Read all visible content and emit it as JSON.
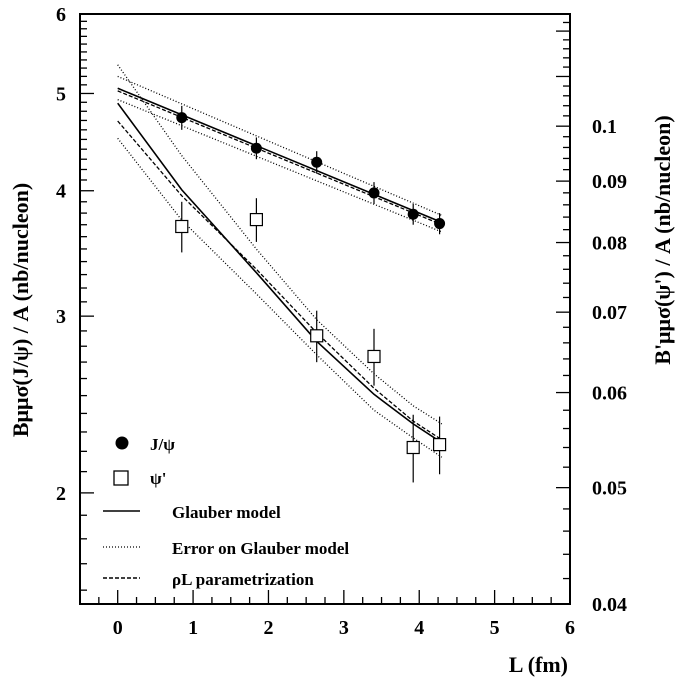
{
  "chart_data": {
    "type": "scatter",
    "x_axis": {
      "label": "L (fm)",
      "range": [
        -0.5,
        6.0
      ],
      "ticks": [
        0,
        1,
        2,
        3,
        4,
        5,
        6
      ]
    },
    "y_left": {
      "label": "Bμμσ(J/ψ) / A (nb/nucleon)",
      "scale": "log",
      "range": [
        1.55,
        6.0
      ],
      "ticks": [
        2,
        3,
        4,
        5,
        6
      ]
    },
    "y_right": {
      "label": "B'μμσ(ψ') / A (nb/nucleon)",
      "scale": "log",
      "range": [
        0.04,
        0.124
      ],
      "ticks": [
        "0.04",
        "0.05",
        "0.06",
        "0.07",
        "0.08",
        "0.09",
        "0.1"
      ]
    },
    "series": [
      {
        "name": "J/ψ",
        "axis": "left",
        "marker": "filled-circle",
        "points": [
          {
            "x": 0.85,
            "y": 4.73,
            "err": 0.13
          },
          {
            "x": 1.84,
            "y": 4.41,
            "err": 0.11
          },
          {
            "x": 2.64,
            "y": 4.27,
            "err": 0.11
          },
          {
            "x": 3.4,
            "y": 3.98,
            "err": 0.1
          },
          {
            "x": 3.92,
            "y": 3.79,
            "err": 0.09
          },
          {
            "x": 4.27,
            "y": 3.71,
            "err": 0.09
          }
        ]
      },
      {
        "name": "ψ'",
        "axis": "right",
        "marker": "open-square",
        "points": [
          {
            "x": 0.85,
            "y": 0.0825,
            "err": 0.004
          },
          {
            "x": 1.84,
            "y": 0.0836,
            "err": 0.0035
          },
          {
            "x": 2.64,
            "y": 0.0669,
            "err": 0.0033
          },
          {
            "x": 3.4,
            "y": 0.0643,
            "err": 0.0035
          },
          {
            "x": 3.92,
            "y": 0.054,
            "err": 0.0035
          },
          {
            "x": 4.27,
            "y": 0.0543,
            "err": 0.003
          }
        ]
      }
    ],
    "curves": [
      {
        "name": "Glauber model",
        "axis": "left",
        "style": "solid",
        "x": [
          0,
          4.3
        ],
        "y": [
          5.06,
          3.72
        ]
      },
      {
        "name": "Error on Glauber model",
        "axis": "left",
        "style": "dotted",
        "x": [
          0,
          4.3
        ],
        "y": [
          5.2,
          3.78
        ]
      },
      {
        "name": "",
        "axis": "left",
        "style": "dotted",
        "x": [
          0,
          4.3
        ],
        "y": [
          4.93,
          3.64
        ]
      },
      {
        "name": "ρL parametrization",
        "axis": "left",
        "style": "dashed",
        "x": [
          0,
          4.3
        ],
        "y": [
          5.03,
          3.7
        ]
      },
      {
        "name": "Glauber model",
        "axis": "right",
        "style": "solid",
        "x": [
          0,
          0.85,
          1.84,
          2.64,
          3.4,
          3.92,
          4.3
        ],
        "y": [
          0.1045,
          0.0885,
          0.0755,
          0.0662,
          0.0598,
          0.0565,
          0.0545
        ]
      },
      {
        "name": "Error on Glauber model",
        "axis": "right",
        "style": "dotted",
        "x": [
          0,
          0.85,
          1.84,
          2.64,
          3.4,
          3.92,
          4.3
        ],
        "y": [
          0.1125,
          0.0945,
          0.079,
          0.069,
          0.0622,
          0.0585,
          0.0565
        ]
      },
      {
        "name": "",
        "axis": "right",
        "style": "dotted",
        "x": [
          0,
          0.85,
          1.84,
          2.64,
          3.4,
          3.92,
          4.3
        ],
        "y": [
          0.0977,
          0.0835,
          0.0725,
          0.0645,
          0.058,
          0.055,
          0.053
        ]
      },
      {
        "name": "ρL parametrization",
        "axis": "right",
        "style": "dashed",
        "x": [
          0,
          0.85,
          1.84,
          2.64,
          3.4,
          3.92,
          4.3
        ],
        "y": [
          0.101,
          0.0875,
          0.076,
          0.0673,
          0.0605,
          0.0568,
          0.0548
        ]
      }
    ],
    "legend": {
      "placement": "bottom-left",
      "entries": [
        {
          "label": "J/ψ",
          "symbol": "filled-circle"
        },
        {
          "label": "ψ'",
          "symbol": "open-square"
        },
        {
          "label": "Glauber model",
          "symbol": "solid"
        },
        {
          "label": "Error on Glauber model",
          "symbol": "dotted"
        },
        {
          "label": "ρL parametrization",
          "symbol": "dashed"
        }
      ]
    }
  }
}
